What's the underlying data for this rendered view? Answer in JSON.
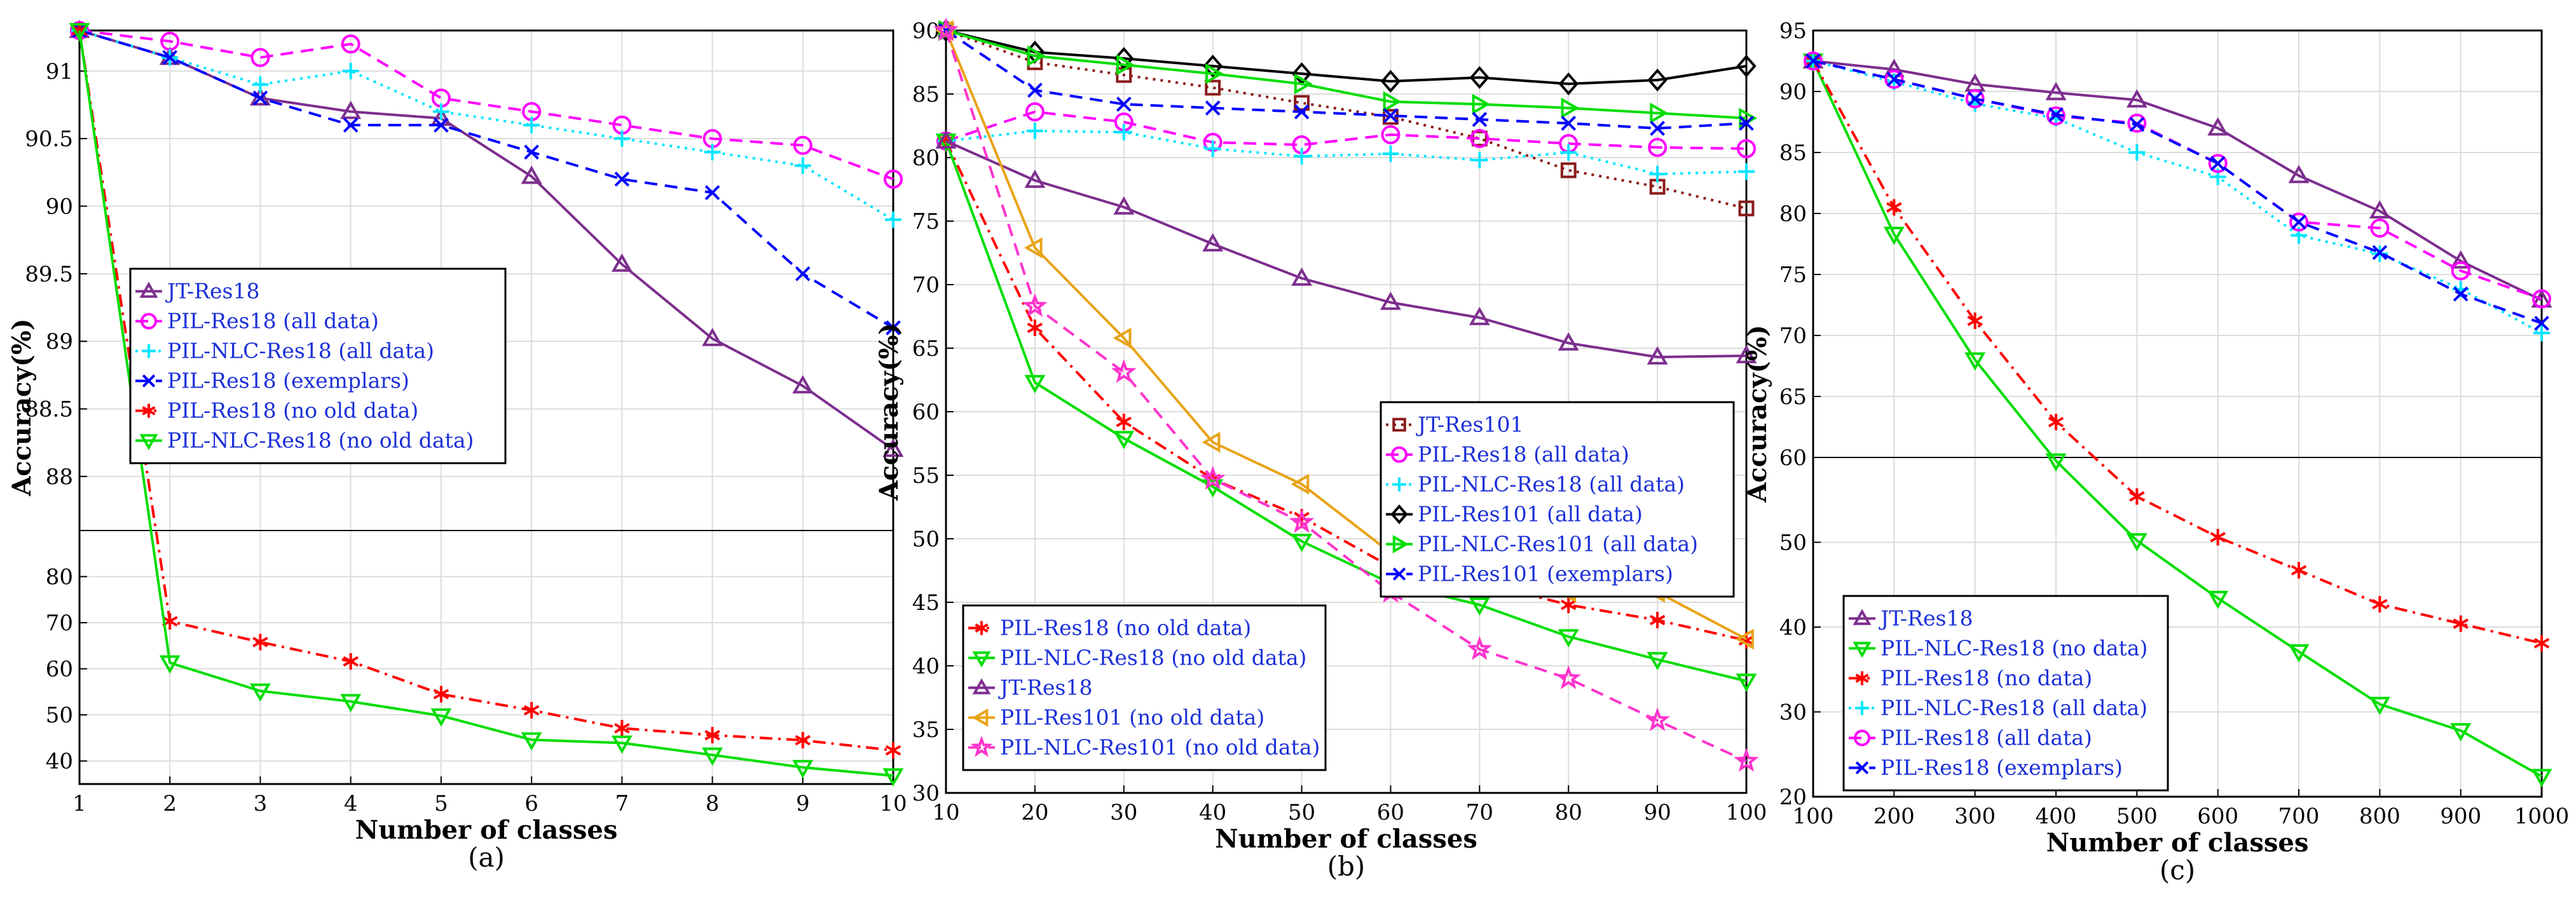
{
  "chart_data": [
    {
      "type": "line",
      "caption": "(a)",
      "xlabel": "Number of classes",
      "ylabel": "Accuracy(%)",
      "x": [
        1,
        2,
        3,
        4,
        5,
        6,
        7,
        8,
        9,
        10
      ],
      "xlim": [
        1,
        10
      ],
      "x_ticks": [
        "1",
        "2",
        "3",
        "4",
        "5",
        "6",
        "7",
        "8",
        "9",
        "10"
      ],
      "broken_y_axis": true,
      "upper_ylim": [
        87.6,
        91.3
      ],
      "upper_ticks": [
        "88",
        "88.5",
        "89",
        "89.5",
        "90",
        "90.5",
        "91"
      ],
      "lower_ylim": [
        35,
        90
      ],
      "lower_ticks": [
        "40",
        "50",
        "60",
        "70",
        "80"
      ],
      "legend_location": "center-left",
      "series": [
        {
          "name": "JT-Res18",
          "color": "#7d2e8e",
          "dash": "solid",
          "marker": "triangle-up",
          "values": [
            91.3,
            91.1,
            90.8,
            90.7,
            90.65,
            90.22,
            89.57,
            89.02,
            88.67,
            88.2
          ]
        },
        {
          "name": "PIL-Res18 (all data)",
          "color": "#ff00ff",
          "dash": "dash",
          "marker": "circle",
          "values": [
            91.3,
            91.22,
            91.1,
            91.2,
            90.8,
            90.7,
            90.6,
            90.5,
            90.45,
            90.2
          ]
        },
        {
          "name": "PIL-NLC-Res18 (all data)",
          "color": "#00e5ff",
          "dash": "dot",
          "marker": "plus",
          "values": [
            91.3,
            91.1,
            90.9,
            91.0,
            90.7,
            90.6,
            90.5,
            90.4,
            90.3,
            89.9
          ]
        },
        {
          "name": "PIL-Res18 (exemplars)",
          "color": "#0000ff",
          "dash": "dash",
          "marker": "x",
          "values": [
            91.3,
            91.1,
            90.8,
            90.6,
            90.6,
            90.4,
            90.2,
            90.1,
            89.5,
            89.1
          ]
        },
        {
          "name": "PIL-Res18 (no old data)",
          "color": "#ff0000",
          "dash": "dashdot",
          "marker": "asterisk",
          "values": [
            91.3,
            70.3,
            65.8,
            61.6,
            54.5,
            51.0,
            47.1,
            45.6,
            44.5,
            42.3
          ]
        },
        {
          "name": "PIL-NLC-Res18 (no old data)",
          "color": "#00dd00",
          "dash": "solid",
          "marker": "triangle-down",
          "values": [
            91.3,
            61.3,
            55.2,
            52.9,
            49.8,
            44.6,
            43.9,
            41.3,
            38.6,
            36.8
          ]
        }
      ]
    },
    {
      "type": "line",
      "caption": "(b)",
      "xlabel": "Number of classes",
      "ylabel": "Accuracy(%)",
      "x": [
        10,
        20,
        30,
        40,
        50,
        60,
        70,
        80,
        90,
        100
      ],
      "xlim": [
        10,
        100
      ],
      "ylim": [
        30,
        90
      ],
      "x_ticks": [
        "10",
        "20",
        "30",
        "40",
        "50",
        "60",
        "70",
        "80",
        "90",
        "100"
      ],
      "y_ticks": [
        "30",
        "35",
        "40",
        "45",
        "50",
        "55",
        "60",
        "65",
        "70",
        "75",
        "80",
        "85",
        "90"
      ],
      "legend_location": "center-right (upper) and bottom-left (lower)",
      "series": [
        {
          "name": "JT-Res101",
          "color": "#8b1a1a",
          "dash": "dot",
          "marker": "square",
          "values": [
            90,
            87.5,
            86.5,
            85.5,
            84.3,
            83.2,
            81.5,
            79.0,
            77.7,
            76.0
          ],
          "legend_group": 1
        },
        {
          "name": "PIL-Res18 (all data)",
          "color": "#ff00ff",
          "dash": "dash",
          "marker": "circle",
          "values": [
            81.3,
            83.6,
            82.8,
            81.2,
            81.0,
            81.8,
            81.5,
            81.1,
            80.8,
            80.7
          ],
          "legend_group": 1
        },
        {
          "name": "PIL-NLC-Res18 (all data)",
          "color": "#00e5ff",
          "dash": "dot",
          "marker": "plus",
          "values": [
            81.3,
            82.1,
            82.0,
            80.7,
            80.1,
            80.3,
            79.8,
            80.4,
            78.7,
            78.9
          ],
          "legend_group": 1
        },
        {
          "name": "PIL-Res101 (all data)",
          "color": "#000000",
          "dash": "solid",
          "marker": "diamond",
          "values": [
            90,
            88.3,
            87.8,
            87.2,
            86.6,
            86.0,
            86.3,
            85.8,
            86.1,
            87.2
          ],
          "legend_group": 1
        },
        {
          "name": "PIL-NLC-Res101 (all data)",
          "color": "#00dd00",
          "dash": "solid",
          "marker": "triangle-right",
          "values": [
            90,
            88.0,
            87.3,
            86.6,
            85.8,
            84.4,
            84.2,
            83.9,
            83.5,
            83.1
          ],
          "legend_group": 1
        },
        {
          "name": "PIL-Res101 (exemplars)",
          "color": "#0000ff",
          "dash": "dash",
          "marker": "x",
          "values": [
            90,
            85.3,
            84.2,
            83.9,
            83.6,
            83.3,
            83.0,
            82.7,
            82.3,
            82.7
          ],
          "legend_group": 1
        },
        {
          "name": "PIL-Res18 (no old data)",
          "color": "#ff0000",
          "dash": "dashdot",
          "marker": "asterisk",
          "values": [
            81.3,
            66.6,
            59.2,
            54.7,
            51.7,
            47.8,
            46.6,
            44.8,
            43.6,
            42.0
          ],
          "legend_group": 2
        },
        {
          "name": "PIL-NLC-Res18 (no old data)",
          "color": "#00dd00",
          "dash": "solid",
          "marker": "triangle-down",
          "values": [
            81.3,
            62.3,
            57.9,
            54.1,
            49.8,
            46.5,
            44.8,
            42.3,
            40.5,
            38.8
          ],
          "legend_group": 2
        },
        {
          "name": "JT-Res18",
          "color": "#7d2e8e",
          "dash": "solid",
          "marker": "triangle-up",
          "values": [
            81.3,
            78.2,
            76.1,
            73.2,
            70.5,
            68.6,
            67.4,
            65.4,
            64.3,
            64.4
          ],
          "legend_group": 2
        },
        {
          "name": "PIL-Res101 (no old data)",
          "color": "#e8a317",
          "dash": "solid",
          "marker": "triangle-left",
          "values": [
            90,
            72.9,
            65.8,
            57.6,
            54.3,
            48.9,
            47.5,
            45.8,
            45.8,
            42.1
          ],
          "legend_group": 2
        },
        {
          "name": "PIL-NLC-Res101 (no old data)",
          "color": "#ff33cc",
          "dash": "dash",
          "marker": "pentagram",
          "values": [
            90,
            68.3,
            63.1,
            54.7,
            51.3,
            45.8,
            41.3,
            39.0,
            35.7,
            32.5
          ],
          "legend_group": 2
        }
      ]
    },
    {
      "type": "line",
      "caption": "(c)",
      "xlabel": "Number of classes",
      "ylabel": "Accuracy(%)",
      "x": [
        100,
        200,
        300,
        400,
        500,
        600,
        700,
        800,
        900,
        1000
      ],
      "xlim": [
        100,
        1000
      ],
      "x_ticks": [
        "100",
        "200",
        "300",
        "400",
        "500",
        "600",
        "700",
        "800",
        "900",
        "1000"
      ],
      "broken_y_axis": true,
      "upper_ylim": [
        60,
        95
      ],
      "upper_ticks": [
        "60",
        "65",
        "70",
        "75",
        "80",
        "85",
        "90",
        "95"
      ],
      "lower_ylim": [
        20,
        60
      ],
      "lower_ticks": [
        "20",
        "30",
        "40",
        "50"
      ],
      "legend_location": "bottom-left",
      "series": [
        {
          "name": "JT-Res18",
          "color": "#7d2e8e",
          "dash": "solid",
          "marker": "triangle-up",
          "values": [
            92.5,
            91.8,
            90.6,
            89.9,
            89.3,
            87.0,
            83.1,
            80.2,
            76.1,
            72.9
          ]
        },
        {
          "name": "PIL-NLC-Res18 (no data)",
          "color": "#00dd00",
          "dash": "solid",
          "marker": "triangle-down",
          "values": [
            92.5,
            78.3,
            68.0,
            59.6,
            50.2,
            43.4,
            37.1,
            30.9,
            27.8,
            22.4
          ]
        },
        {
          "name": "PIL-Res18 (no data)",
          "color": "#ff0000",
          "dash": "dashdot",
          "marker": "asterisk",
          "values": [
            92.5,
            80.5,
            71.2,
            62.9,
            55.4,
            50.6,
            46.7,
            42.7,
            40.4,
            38.1
          ]
        },
        {
          "name": "PIL-NLC-Res18 (all data)",
          "color": "#00e5ff",
          "dash": "dot",
          "marker": "plus",
          "values": [
            92.5,
            90.8,
            89.0,
            87.8,
            85.0,
            83.0,
            78.2,
            76.7,
            73.8,
            70.2
          ]
        },
        {
          "name": "PIL-Res18 (all data)",
          "color": "#ff00ff",
          "dash": "dash",
          "marker": "circle",
          "values": [
            92.5,
            91.0,
            89.4,
            88.0,
            87.4,
            84.1,
            79.3,
            78.8,
            75.3,
            73.0
          ]
        },
        {
          "name": "PIL-Res18 (exemplars)",
          "color": "#0000ff",
          "dash": "dash",
          "marker": "x",
          "values": [
            92.5,
            91.0,
            89.4,
            88.1,
            87.3,
            84.1,
            79.3,
            76.8,
            73.4,
            71.0
          ]
        }
      ]
    }
  ]
}
